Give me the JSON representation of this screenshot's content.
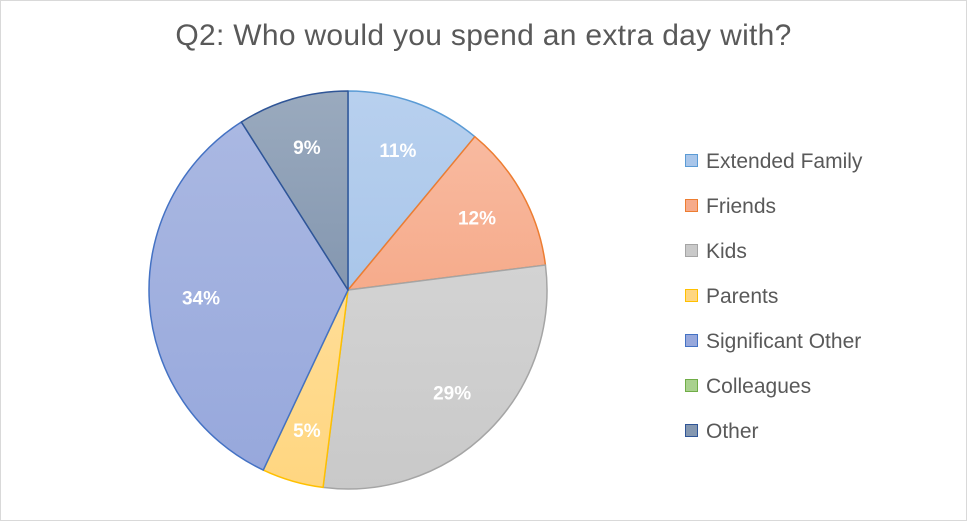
{
  "chart_data": {
    "type": "pie",
    "title": "Q2: Who would you spend an extra day with?",
    "legend_position": "right",
    "slices": [
      {
        "label": "Extended Family",
        "value": 11,
        "value_label": "11%",
        "fill": "#a9c6ea",
        "stroke": "#5b9bd5"
      },
      {
        "label": "Friends",
        "value": 12,
        "value_label": "12%",
        "fill": "#f6ab8b",
        "stroke": "#ed7d31"
      },
      {
        "label": "Kids",
        "value": 29,
        "value_label": "29%",
        "fill": "#c9c9c9",
        "stroke": "#a5a5a5"
      },
      {
        "label": "Parents",
        "value": 5,
        "value_label": "5%",
        "fill": "#ffd680",
        "stroke": "#ffc000"
      },
      {
        "label": "Significant Other",
        "value": 34,
        "value_label": "34%",
        "fill": "#97a8dc",
        "stroke": "#4472c4"
      },
      {
        "label": "Colleagues",
        "value": 0,
        "value_label": "",
        "fill": "#a9d18e",
        "stroke": "#70ad47"
      },
      {
        "label": "Other",
        "value": 9,
        "value_label": "9%",
        "fill": "#8497b0",
        "stroke": "#2f5597"
      }
    ]
  }
}
